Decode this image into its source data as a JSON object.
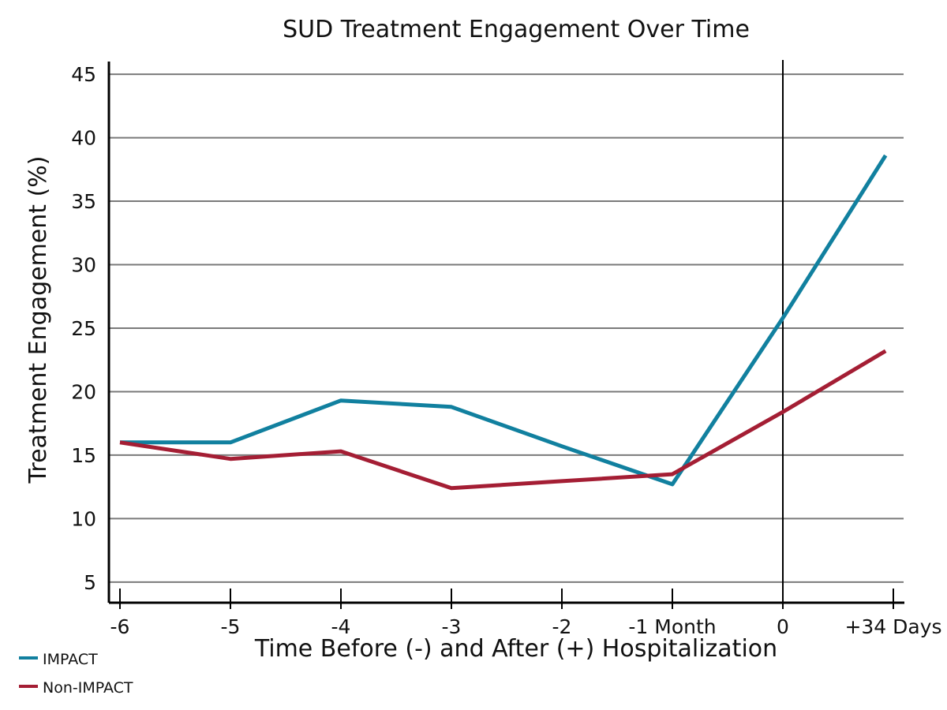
{
  "chart_data": {
    "type": "line",
    "title": "SUD Treatment Engagement Over Time",
    "xlabel": "Time Before (-) and After (+) Hospitalization",
    "ylabel": "Treatment Engagement (%)",
    "categories": [
      "-6",
      "-5",
      "-4",
      "-3",
      "-2",
      "-1 Month",
      "0",
      "+34 Days"
    ],
    "yticks": [
      "5",
      "10",
      "15",
      "20",
      "25",
      "30",
      "35",
      "40",
      "45"
    ],
    "ylim": [
      3.5,
      46
    ],
    "grid": "horizontal",
    "legend_position": "bottom-left",
    "series": [
      {
        "name": "IMPACT",
        "color": "#11809f",
        "points": [
          {
            "x": 0,
            "y": 16.0
          },
          {
            "x": 1,
            "y": 16.0
          },
          {
            "x": 2,
            "y": 19.3
          },
          {
            "x": 3,
            "y": 18.8
          },
          {
            "x": 4,
            "y": 15.7
          },
          {
            "x": 5,
            "y": 12.7
          },
          {
            "x": 6,
            "y": 25.8
          },
          {
            "x": 6.93,
            "y": 38.6
          }
        ]
      },
      {
        "name": "Non-IMPACT",
        "color": "#a41e34",
        "points": [
          {
            "x": 0,
            "y": 16.0
          },
          {
            "x": 1,
            "y": 14.7
          },
          {
            "x": 2,
            "y": 15.3
          },
          {
            "x": 3,
            "y": 12.4
          },
          {
            "x": 4,
            "y": 12.95
          },
          {
            "x": 5,
            "y": 13.5
          },
          {
            "x": 6,
            "y": 18.4
          },
          {
            "x": 6.93,
            "y": 23.2
          }
        ]
      }
    ],
    "reference_line_x": 6,
    "ytick_values": [
      5,
      10,
      15,
      20,
      25,
      30,
      35,
      40,
      45
    ],
    "xtick_values": [
      0,
      1,
      2,
      3,
      4,
      5,
      6,
      7
    ]
  }
}
